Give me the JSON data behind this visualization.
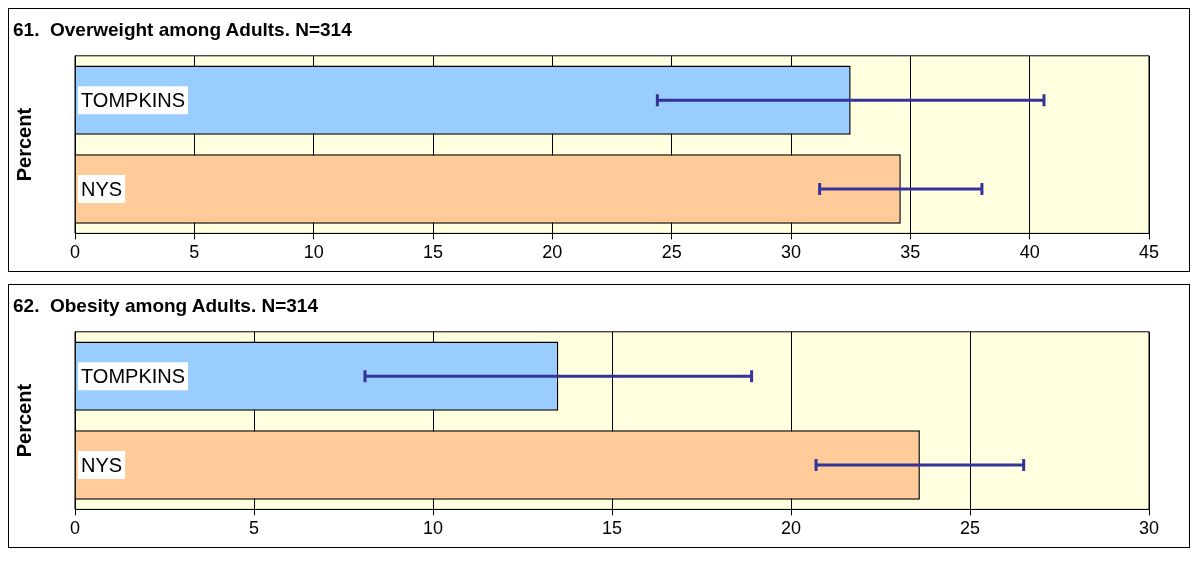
{
  "chart_data": [
    {
      "type": "bar",
      "orientation": "horizontal",
      "title": "61.  Overweight among Adults. N=314",
      "ylabel": "Percent",
      "categories": [
        "TOMPKINS",
        "NYS"
      ],
      "values": [
        32.5,
        34.6
      ],
      "colors": [
        "#99ccff",
        "#ffcc99"
      ],
      "errors": [
        [
          24.4,
          40.6
        ],
        [
          31.2,
          38.0
        ]
      ],
      "xlim": [
        0,
        45
      ],
      "xticks": [
        0,
        5,
        10,
        15,
        20,
        25,
        30,
        35,
        40,
        45
      ],
      "grid": "x"
    },
    {
      "type": "bar",
      "orientation": "horizontal",
      "title": "62.  Obesity among Adults. N=314",
      "ylabel": "Percent",
      "categories": [
        "TOMPKINS",
        "NYS"
      ],
      "values": [
        13.5,
        23.6
      ],
      "colors": [
        "#99ccff",
        "#ffcc99"
      ],
      "errors": [
        [
          8.1,
          18.9
        ],
        [
          20.7,
          26.5
        ]
      ],
      "xlim": [
        0,
        30
      ],
      "xticks": [
        0,
        5,
        10,
        15,
        20,
        25,
        30
      ],
      "grid": "x"
    }
  ]
}
